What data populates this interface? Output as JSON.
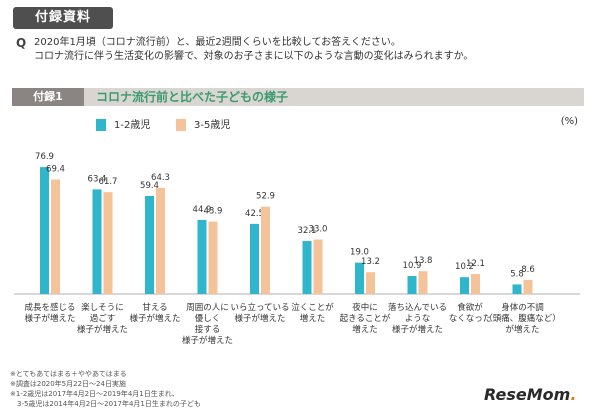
{
  "header": {
    "badge": "付録資料",
    "question_mark": "Q",
    "question_line1": "2020年1月頃（コロナ流行前）と、最近2週間くらいを比較してお答えください。",
    "question_line2": "コロナ流行に伴う生活変化の影響で、対象のお子さまに以下のような言動の変化はみられますか。"
  },
  "section": {
    "tag": "付録1",
    "title": "コロナ流行前と比べた子どもの様子"
  },
  "unit_label": "(%)",
  "colors": {
    "series_1": "#2fb6cc",
    "series_2": "#f4c39a",
    "green": "#3b9a6e"
  },
  "chart_data": {
    "type": "bar",
    "title": "コロナ流行前と比べた子どもの様子",
    "ylabel": "(%)",
    "ylim": [
      0,
      100
    ],
    "grid": false,
    "legend": "top-left",
    "categories": [
      [
        "成長を感じる",
        "様子が増えた"
      ],
      [
        "楽しそうに",
        "過ごす",
        "様子が増えた"
      ],
      [
        "甘える",
        "様子が増えた"
      ],
      [
        "周囲の人に",
        "優しく",
        "接する",
        "様子が増えた"
      ],
      [
        "いら立っている",
        "様子が増えた"
      ],
      [
        "泣くことが",
        "増えた"
      ],
      [
        "夜中に",
        "起きることが",
        "増えた"
      ],
      [
        "落ち込んでいる",
        "ような",
        "様子が増えた"
      ],
      [
        "食欲が",
        "なくなった"
      ],
      [
        "身体の不調",
        "（頭痛、腹痛など）",
        "が増えた"
      ]
    ],
    "series": [
      {
        "name": "1-2歳児",
        "values": [
          76.9,
          63.4,
          59.4,
          44.9,
          42.5,
          32.1,
          19.0,
          10.9,
          10.2,
          5.8
        ]
      },
      {
        "name": "3-5歳児",
        "values": [
          69.4,
          61.7,
          64.3,
          43.9,
          52.9,
          33.0,
          13.2,
          13.8,
          12.1,
          8.6
        ]
      }
    ]
  },
  "footnotes": [
    "※とてもあてはまる＋ややあてはまる",
    "※調査は2020年5月22日～24日実施",
    "※1-2歳児は2017年4月2日～2019年4月1日生まれ、",
    "　3-5歳児は2014年4月2日～2017年4月1日生まれの子ども"
  ],
  "logo": {
    "text": "ReseMom",
    "dot": "."
  }
}
